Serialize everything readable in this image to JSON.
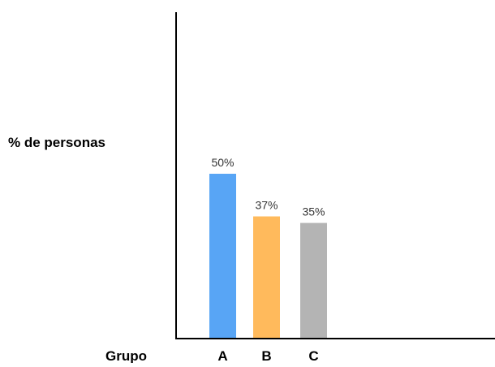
{
  "chart_data": {
    "type": "bar",
    "title": "",
    "ylabel": "% de personas",
    "xlabel": "Grupo",
    "categories": [
      "A",
      "B",
      "C"
    ],
    "values": [
      50,
      37,
      35
    ],
    "data_labels": [
      "50%",
      "37%",
      "35%"
    ],
    "colors": [
      "#58A5F5",
      "#FFBA5C",
      "#B4B4B4"
    ],
    "ylim": [
      0,
      100
    ],
    "grid": false,
    "legend": "none"
  }
}
